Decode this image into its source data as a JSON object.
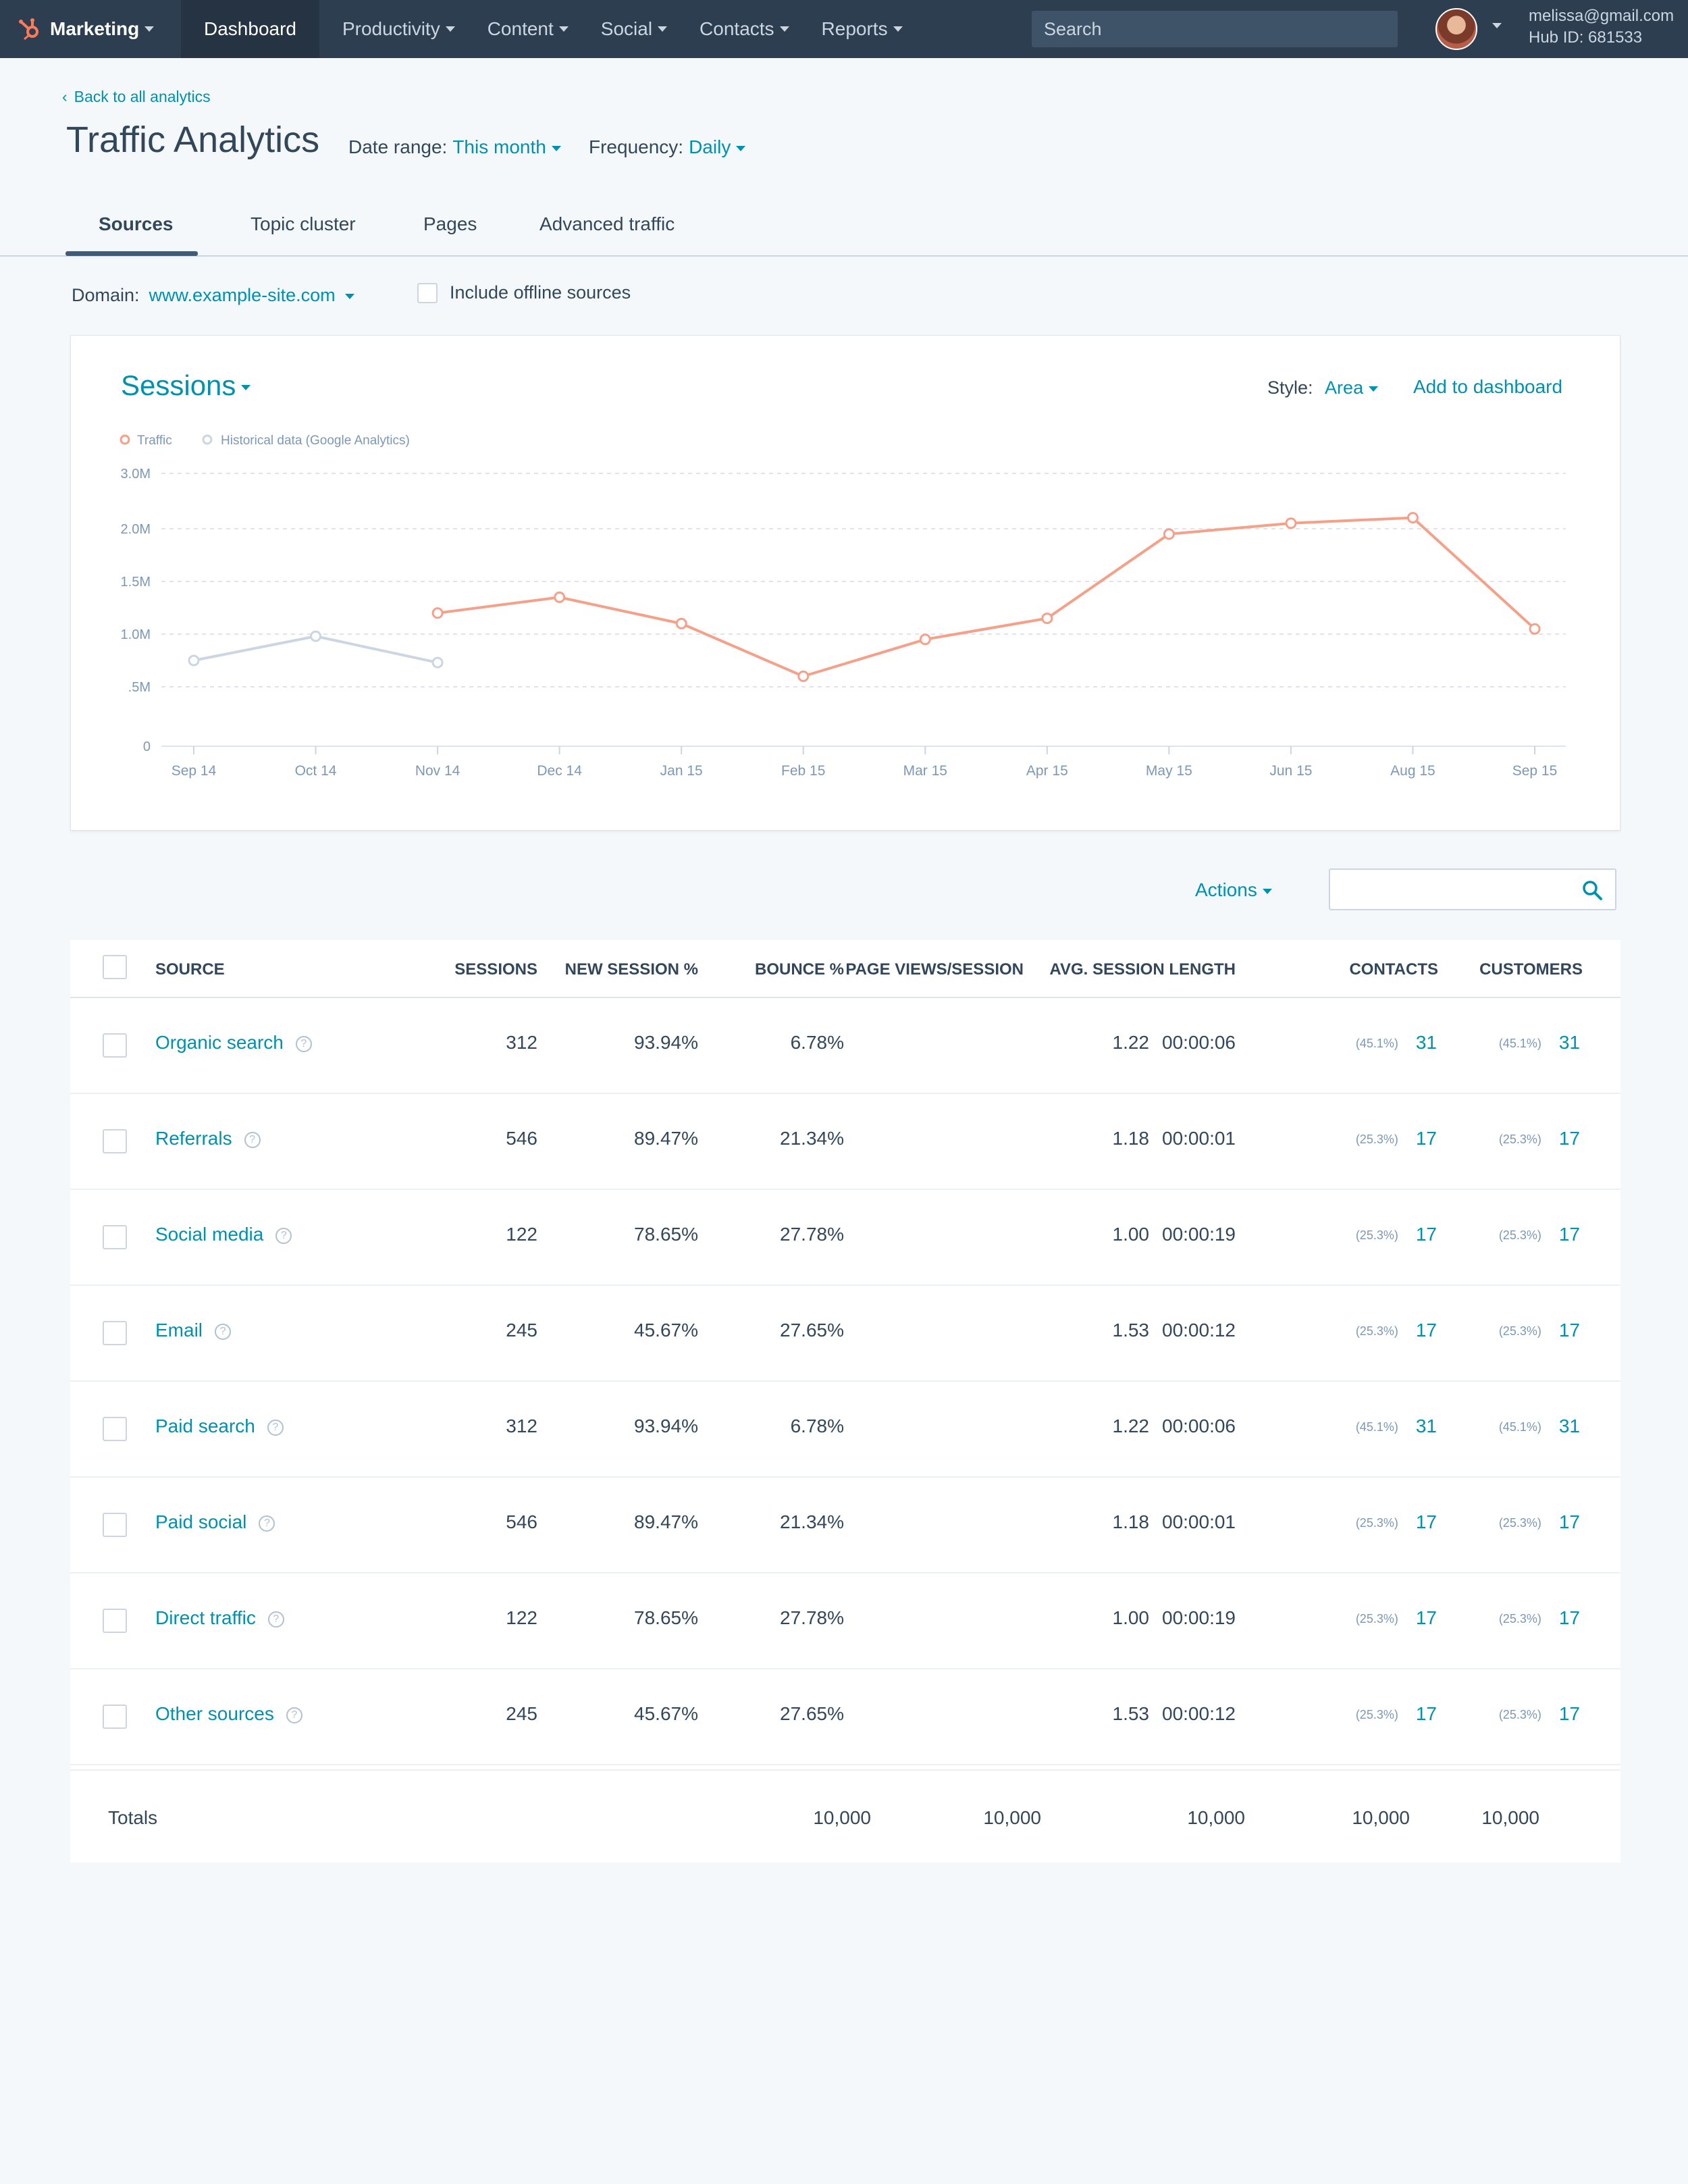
{
  "nav": {
    "brand": "Marketing",
    "items": [
      {
        "label": "Dashboard",
        "active": true
      },
      {
        "label": "Productivity"
      },
      {
        "label": "Content"
      },
      {
        "label": "Social"
      },
      {
        "label": "Contacts"
      },
      {
        "label": "Reports"
      }
    ],
    "search_placeholder": "Search",
    "user_email": "melissa@gmail.com",
    "hub_id": "Hub ID: 681533"
  },
  "header": {
    "back_link": "Back to all analytics",
    "title": "Traffic Analytics",
    "date_range_label": "Date range:",
    "date_range_value": "This month",
    "frequency_label": "Frequency:",
    "frequency_value": "Daily"
  },
  "tabs": [
    "Sources",
    "Topic cluster",
    "Pages",
    "Advanced traffic"
  ],
  "domain": {
    "label": "Domain:",
    "value": "www.example-site.com",
    "offline_label": "Include offline sources"
  },
  "chart": {
    "title": "Sessions",
    "style_label": "Style:",
    "style_value": "Area",
    "add_to_dashboard": "Add to dashboard",
    "colors": {
      "traffic": "#f5a089",
      "historical": "#cbd6e2",
      "grid": "#dfe3eb"
    }
  },
  "chart_data": {
    "type": "line",
    "categories": [
      "Sep 14",
      "Oct 14",
      "Nov 14",
      "Dec 14",
      "Jan 15",
      "Feb 15",
      "Mar 15",
      "Apr 15",
      "May 15",
      "Jun 15",
      "Aug 15",
      "Sep 15"
    ],
    "y_ticks": [
      "0",
      ".5M",
      "1.0M",
      "1.5M",
      "2.0M",
      "3.0M"
    ],
    "legend_placement": "top-left",
    "grid": true,
    "series": [
      {
        "name": "Historical data (Google Analytics)",
        "values": [
          0.75,
          0.98,
          0.73,
          null,
          null,
          null,
          null,
          null,
          null,
          null,
          null,
          null
        ]
      },
      {
        "name": "Traffic",
        "values": [
          null,
          null,
          1.2,
          1.35,
          1.1,
          0.6,
          0.95,
          1.15,
          1.95,
          2.1,
          2.2,
          1.05
        ]
      }
    ]
  },
  "actions": {
    "label": "Actions"
  },
  "table": {
    "headers": [
      "SOURCE",
      "SESSIONS",
      "NEW SESSION %",
      "BOUNCE %",
      "PAGE VIEWS/SESSION",
      "AVG. SESSION LENGTH",
      "CONTACTS",
      "CUSTOMERS"
    ],
    "help_glyph": "?",
    "rows": [
      {
        "source": "Organic search",
        "sessions": "312",
        "new_pct": "93.94%",
        "bounce": "6.78%",
        "pvs": "1.22",
        "avg": "00:00:06",
        "c_pct": "(45.1%)",
        "contacts": "31",
        "cu_pct": "(45.1%)",
        "customers": "31"
      },
      {
        "source": "Referrals",
        "sessions": "546",
        "new_pct": "89.47%",
        "bounce": "21.34%",
        "pvs": "1.18",
        "avg": "00:00:01",
        "c_pct": "(25.3%)",
        "contacts": "17",
        "cu_pct": "(25.3%)",
        "customers": "17"
      },
      {
        "source": "Social media",
        "sessions": "122",
        "new_pct": "78.65%",
        "bounce": "27.78%",
        "pvs": "1.00",
        "avg": "00:00:19",
        "c_pct": "(25.3%)",
        "contacts": "17",
        "cu_pct": "(25.3%)",
        "customers": "17"
      },
      {
        "source": "Email",
        "sessions": "245",
        "new_pct": "45.67%",
        "bounce": "27.65%",
        "pvs": "1.53",
        "avg": "00:00:12",
        "c_pct": "(25.3%)",
        "contacts": "17",
        "cu_pct": "(25.3%)",
        "customers": "17"
      },
      {
        "source": "Paid search",
        "sessions": "312",
        "new_pct": "93.94%",
        "bounce": "6.78%",
        "pvs": "1.22",
        "avg": "00:00:06",
        "c_pct": "(45.1%)",
        "contacts": "31",
        "cu_pct": "(45.1%)",
        "customers": "31"
      },
      {
        "source": "Paid social",
        "sessions": "546",
        "new_pct": "89.47%",
        "bounce": "21.34%",
        "pvs": "1.18",
        "avg": "00:00:01",
        "c_pct": "(25.3%)",
        "contacts": "17",
        "cu_pct": "(25.3%)",
        "customers": "17"
      },
      {
        "source": "Direct traffic",
        "sessions": "122",
        "new_pct": "78.65%",
        "bounce": "27.78%",
        "pvs": "1.00",
        "avg": "00:00:19",
        "c_pct": "(25.3%)",
        "contacts": "17",
        "cu_pct": "(25.3%)",
        "customers": "17"
      },
      {
        "source": "Other sources",
        "sessions": "245",
        "new_pct": "45.67%",
        "bounce": "27.65%",
        "pvs": "1.53",
        "avg": "00:00:12",
        "c_pct": "(25.3%)",
        "contacts": "17",
        "cu_pct": "(25.3%)",
        "customers": "17"
      }
    ],
    "totals_label": "Totals",
    "totals": [
      "10,000",
      "10,000",
      "10,000",
      "10,000",
      "10,000"
    ]
  }
}
